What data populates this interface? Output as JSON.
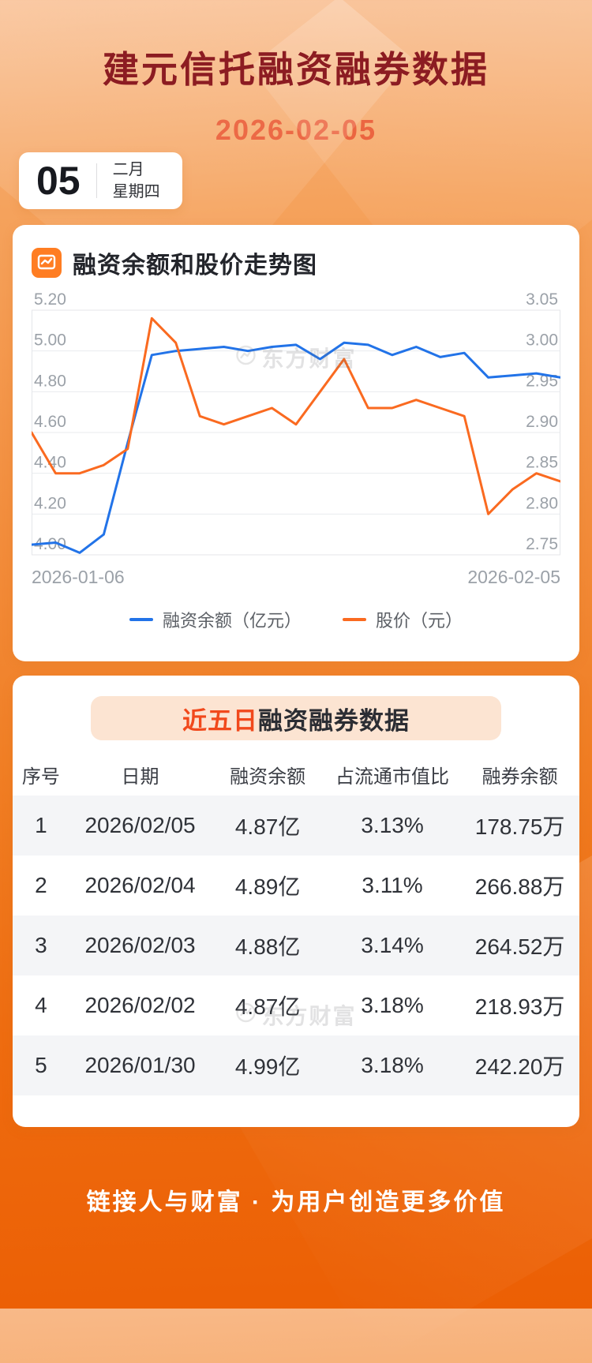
{
  "header": {
    "title": "建元信托融资融券数据",
    "date": "2026-02-05"
  },
  "date_card": {
    "day": "05",
    "month": "二月",
    "weekday": "星期四"
  },
  "chart_card": {
    "title": "融资余额和股价走势图",
    "watermark": "东方财富",
    "legend": [
      {
        "label": "融资余额（亿元）",
        "color": "#2273e8"
      },
      {
        "label": "股价（元）",
        "color": "#fa6a20"
      }
    ]
  },
  "chart_data": {
    "type": "line",
    "title": "融资余额和股价走势图",
    "x_tick_labels": [
      "2026-01-06",
      "2026-02-05"
    ],
    "grid": true,
    "legend_position": "bottom",
    "left_axis": {
      "label": "融资余额（亿元）",
      "min": 4.0,
      "max": 5.2,
      "ticks": [
        "5.20",
        "5.00",
        "4.80",
        "4.60",
        "4.40",
        "4.20",
        "4.00"
      ]
    },
    "right_axis": {
      "label": "股价（元）",
      "min": 2.75,
      "max": 3.05,
      "ticks": [
        "3.05",
        "3.00",
        "2.95",
        "2.90",
        "2.85",
        "2.80",
        "2.75"
      ]
    },
    "series": [
      {
        "name": "融资余额（亿元）",
        "axis": "left",
        "color": "#2273e8",
        "values": [
          4.05,
          4.06,
          4.01,
          4.1,
          4.55,
          4.98,
          5.0,
          5.01,
          5.02,
          5.0,
          5.02,
          5.03,
          4.96,
          5.04,
          5.03,
          4.98,
          5.02,
          4.97,
          4.99,
          4.87,
          4.88,
          4.89,
          4.87
        ]
      },
      {
        "name": "股价（元）",
        "axis": "right",
        "color": "#fa6a20",
        "values": [
          2.9,
          2.85,
          2.85,
          2.86,
          2.88,
          3.04,
          3.01,
          2.92,
          2.91,
          2.92,
          2.93,
          2.91,
          2.95,
          2.99,
          2.93,
          2.93,
          2.94,
          2.93,
          2.92,
          2.8,
          2.83,
          2.85,
          2.84
        ]
      }
    ]
  },
  "table_card": {
    "title_highlight": "近五日",
    "title_rest": "融资融券数据",
    "watermark": "东方财富",
    "columns": [
      "序号",
      "日期",
      "融资余额",
      "占流通市值比",
      "融券余额"
    ],
    "rows": [
      [
        "1",
        "2026/02/05",
        "4.87亿",
        "3.13%",
        "178.75万"
      ],
      [
        "2",
        "2026/02/04",
        "4.89亿",
        "3.11%",
        "266.88万"
      ],
      [
        "3",
        "2026/02/03",
        "4.88亿",
        "3.14%",
        "264.52万"
      ],
      [
        "4",
        "2026/02/02",
        "4.87亿",
        "3.18%",
        "218.93万"
      ],
      [
        "5",
        "2026/01/30",
        "4.99亿",
        "3.18%",
        "242.20万"
      ]
    ]
  },
  "footer": {
    "slogan": "链接人与财富 · 为用户创造更多价值"
  }
}
